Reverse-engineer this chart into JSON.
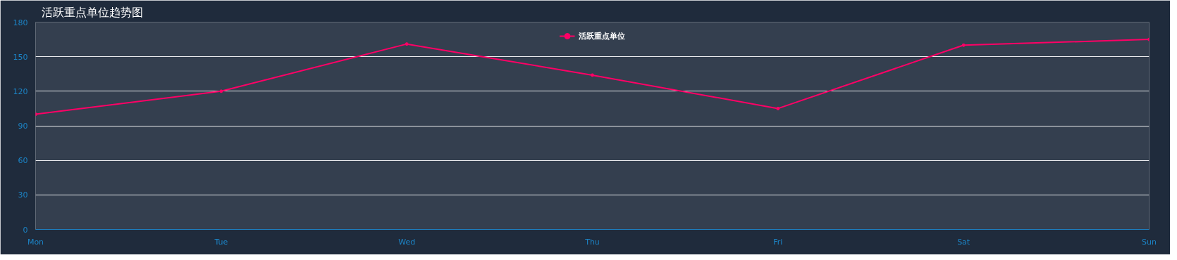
{
  "chart_data": {
    "type": "line",
    "title": "活跃重点单位趋势图",
    "categories": [
      "Mon",
      "Tue",
      "Wed",
      "Thu",
      "Fri",
      "Sat",
      "Sun"
    ],
    "series": [
      {
        "name": "活跃重点单位",
        "color": "#ff0066",
        "values": [
          100,
          120,
          161,
          134,
          105,
          160,
          165
        ]
      }
    ],
    "ylim": [
      0,
      180
    ],
    "yticks": [
      0,
      30,
      60,
      90,
      120,
      150,
      180
    ],
    "grid": "y",
    "legend": "top",
    "marker": "circle",
    "line_style": "solid"
  }
}
